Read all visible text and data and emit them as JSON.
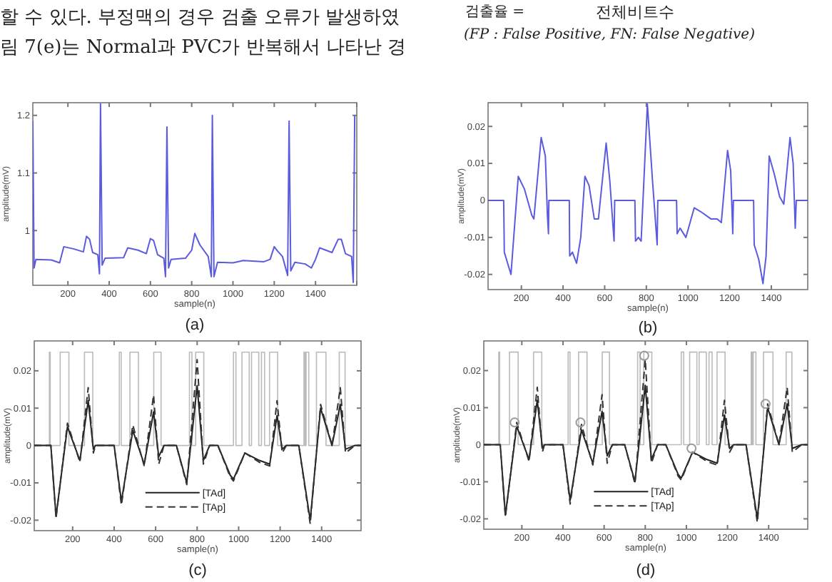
{
  "chart_data": [
    {
      "type": "line",
      "title": "(a)",
      "xlabel": "sample(n)",
      "ylabel": "amplitude(mV)",
      "xlim": [
        30,
        1600
      ],
      "ylim": [
        0.905,
        1.222
      ],
      "xticks": [
        200,
        400,
        600,
        800,
        1000,
        1200,
        1400,
        {
          "value": 1600,
          "label": null
        }
      ],
      "yticks": [
        {
          "value": 1,
          "label": "1"
        },
        1.1,
        1.2
      ],
      "grid": false,
      "annotations": [
        "할 수 있다. 부정맥의 경우 검출 오류가 발생하였",
        "림 7(e)는 Normal과 PVC가 반복해서 나타난 경"
      ],
      "series": [
        {
          "color": "#5b5bdf",
          "x": [
            30,
            36,
            45,
            120,
            160,
            180,
            230,
            275,
            290,
            305,
            320,
            345,
            353,
            358,
            366,
            380,
            470,
            490,
            540,
            580,
            600,
            615,
            635,
            665,
            673,
            680,
            688,
            700,
            770,
            800,
            815,
            840,
            880,
            895,
            900,
            908,
            925,
            1000,
            1050,
            1150,
            1180,
            1200,
            1215,
            1240,
            1265,
            1272,
            1280,
            1300,
            1350,
            1380,
            1400,
            1420,
            1480,
            1510,
            1525,
            1545,
            1575,
            1583,
            1590
          ],
          "values": [
            1.19,
            0.935,
            0.95,
            0.949,
            0.944,
            0.972,
            0.968,
            0.963,
            0.99,
            0.985,
            0.962,
            0.958,
            0.925,
            1.22,
            0.94,
            0.952,
            0.953,
            0.97,
            0.966,
            0.96,
            0.986,
            0.983,
            0.958,
            0.952,
            0.92,
            1.18,
            0.935,
            0.95,
            0.952,
            0.966,
            0.995,
            0.975,
            0.955,
            0.92,
            1.2,
            0.92,
            0.945,
            0.944,
            0.948,
            0.946,
            0.95,
            0.972,
            0.965,
            0.955,
            0.922,
            1.19,
            0.93,
            0.945,
            0.942,
            0.935,
            0.95,
            0.97,
            0.962,
            0.985,
            0.985,
            0.96,
            0.955,
            0.91,
            1.2
          ]
        }
      ]
    },
    {
      "type": "line",
      "title": "(b)",
      "xlabel": "sample(n)",
      "ylabel": "amplitude(mV)",
      "xlim": [
        40,
        1575
      ],
      "ylim": [
        -0.0241,
        0.0264
      ],
      "xticks": [
        200,
        400,
        600,
        800,
        1000,
        1200,
        1400
      ],
      "yticks": [
        -0.02,
        -0.01,
        0,
        0.01,
        0.02
      ],
      "grid": false,
      "annotations": [
        "검출율 =",
        "전체비트수",
        "(FP : False Positive, FN: False Negative)"
      ],
      "series": [
        {
          "color": "#5b5bdf",
          "x": [
            40,
            115,
            118,
            150,
            185,
            215,
            250,
            260,
            295,
            315,
            325,
            330,
            332,
            430,
            432,
            445,
            465,
            485,
            505,
            525,
            550,
            570,
            607,
            625,
            645,
            648,
            745,
            748,
            762,
            775,
            805,
            830,
            852,
            855,
            945,
            948,
            962,
            990,
            1030,
            1060,
            1110,
            1140,
            1160,
            1190,
            1205,
            1215,
            1218,
            1315,
            1318,
            1340,
            1360,
            1375,
            1390,
            1415,
            1440,
            1460,
            1490,
            1505,
            1515,
            1520,
            1575
          ],
          "values": [
            0,
            0,
            -0.014,
            -0.02,
            0.0065,
            0.003,
            -0.004,
            -0.005,
            0.017,
            0.012,
            -0.004,
            -0.009,
            0,
            0,
            -0.015,
            -0.014,
            -0.017,
            -0.01,
            0.0065,
            0.004,
            -0.005,
            -0.005,
            0.0155,
            0.005,
            -0.011,
            0,
            0,
            -0.011,
            -0.01,
            -0.011,
            0.026,
            0.005,
            -0.012,
            0,
            0,
            -0.009,
            -0.0075,
            -0.01,
            -0.002,
            -0.003,
            -0.005,
            -0.005,
            -0.006,
            0.0135,
            0.008,
            -0.009,
            0,
            0,
            -0.012,
            -0.016,
            -0.0225,
            -0.015,
            0.012,
            0.007,
            0.001,
            -0.001,
            0.017,
            0.01,
            -0.0075,
            0,
            0
          ]
        }
      ]
    },
    {
      "type": "line",
      "title": "(c)",
      "xlabel": "sample(n)",
      "ylabel": "amplitude(mV)",
      "xlim": [
        15,
        1590
      ],
      "ylim": [
        -0.0228,
        0.028
      ],
      "xticks": [
        200,
        400,
        600,
        800,
        1000,
        1200,
        1400
      ],
      "yticks": [
        -0.02,
        -0.01,
        0,
        0.01,
        0.02
      ],
      "grid": false,
      "legend": "bottom",
      "series": [
        {
          "type": "step",
          "color": "#bbbbbb",
          "x": [
            15,
            88,
            92,
            140,
            182,
            257,
            297,
            425,
            434,
            476,
            517,
            591,
            626,
            763,
            775,
            793,
            832,
            975,
            987,
            1016,
            1051,
            1062,
            1097,
            1110,
            1125,
            1149,
            1188,
            1315,
            1320,
            1325,
            1338,
            1375,
            1421,
            1485,
            1513,
            1590
          ],
          "values": [
            0,
            0.025,
            0,
            0.025,
            0,
            0.025,
            0,
            0.025,
            0,
            0.025,
            0,
            0.025,
            0,
            0.025,
            0,
            0.025,
            0,
            0.025,
            0,
            0.025,
            0,
            0.025,
            0,
            0.025,
            0,
            0.025,
            0,
            0.025,
            0,
            0.025,
            0,
            0.025,
            0,
            0.025,
            0,
            0
          ]
        },
        {
          "name": "[TAd]",
          "color": "#222222",
          "line_style": "solid",
          "x": [
            15,
            95,
            120,
            175,
            235,
            275,
            300,
            310,
            400,
            435,
            490,
            545,
            590,
            615,
            640,
            700,
            750,
            800,
            830,
            860,
            900,
            960,
            975,
            1030,
            1100,
            1150,
            1185,
            1210,
            1230,
            1290,
            1345,
            1395,
            1450,
            1490,
            1515,
            1560,
            1590
          ],
          "values": [
            0,
            0,
            -0.019,
            0.005,
            -0.004,
            0.012,
            -0.001,
            0,
            0,
            -0.015,
            0.004,
            -0.005,
            0.009,
            -0.003,
            0,
            0,
            -0.01,
            0.016,
            -0.004,
            0,
            0,
            -0.008,
            -0.009,
            -0.002,
            -0.004,
            -0.005,
            0.008,
            -0.001,
            0,
            0,
            -0.02,
            0.01,
            0,
            0.011,
            -0.001,
            0,
            0
          ]
        },
        {
          "name": "[TAp]",
          "color": "#333333",
          "line_style": "dashed",
          "x": [
            15,
            95,
            120,
            175,
            235,
            275,
            300,
            310,
            400,
            435,
            490,
            545,
            590,
            615,
            640,
            700,
            750,
            800,
            830,
            860,
            900,
            960,
            975,
            1030,
            1100,
            1150,
            1185,
            1210,
            1230,
            1290,
            1345,
            1395,
            1450,
            1490,
            1515,
            1560,
            1590
          ],
          "values": [
            0,
            0,
            -0.0195,
            0.006,
            -0.0045,
            0.0155,
            -0.002,
            0,
            0,
            -0.016,
            0.0055,
            -0.0055,
            0.0135,
            -0.005,
            0,
            0,
            -0.0105,
            0.023,
            -0.005,
            0,
            0,
            -0.0085,
            -0.0095,
            -0.002,
            -0.0045,
            -0.0055,
            0.012,
            -0.002,
            0,
            0,
            -0.021,
            0.011,
            0,
            0.0155,
            -0.002,
            0,
            0
          ]
        }
      ]
    },
    {
      "type": "line",
      "title": "(d)",
      "xlabel": "sample(n)",
      "ylabel": "amplitude(mV)",
      "xlim": [
        15,
        1590
      ],
      "ylim": [
        -0.0228,
        0.028
      ],
      "xticks": [
        200,
        400,
        600,
        800,
        1000,
        1200,
        1400
      ],
      "yticks": [
        -0.02,
        -0.01,
        0,
        0.01,
        0.02
      ],
      "grid": false,
      "legend": "bottom",
      "series": [
        {
          "type": "step",
          "color": "#bbbbbb",
          "x": [
            15,
            88,
            92,
            140,
            182,
            257,
            297,
            425,
            434,
            476,
            517,
            591,
            626,
            763,
            775,
            793,
            832,
            975,
            987,
            1016,
            1051,
            1062,
            1097,
            1110,
            1125,
            1149,
            1188,
            1315,
            1320,
            1325,
            1338,
            1375,
            1421,
            1485,
            1513,
            1590
          ],
          "values": [
            0,
            0.025,
            0,
            0.025,
            0,
            0.025,
            0,
            0.025,
            0,
            0.025,
            0,
            0.025,
            0,
            0.025,
            0,
            0.025,
            0,
            0.025,
            0,
            0.025,
            0,
            0.025,
            0,
            0.025,
            0,
            0.025,
            0,
            0.025,
            0,
            0.025,
            0,
            0.025,
            0,
            0.025,
            0,
            0
          ]
        },
        {
          "name": "[TAd]",
          "color": "#222222",
          "line_style": "solid",
          "x": [
            15,
            95,
            120,
            175,
            235,
            275,
            300,
            310,
            400,
            435,
            490,
            545,
            590,
            615,
            640,
            700,
            750,
            800,
            830,
            860,
            900,
            960,
            975,
            1030,
            1100,
            1150,
            1185,
            1210,
            1230,
            1290,
            1345,
            1395,
            1450,
            1490,
            1515,
            1560,
            1590
          ],
          "values": [
            0,
            0,
            -0.019,
            0.005,
            -0.004,
            0.012,
            -0.001,
            0,
            0,
            -0.015,
            0.004,
            -0.005,
            0.009,
            -0.003,
            0,
            0,
            -0.01,
            0.016,
            -0.004,
            0,
            0,
            -0.008,
            -0.009,
            -0.002,
            -0.004,
            -0.005,
            0.008,
            -0.001,
            0,
            0,
            -0.02,
            0.01,
            0,
            0.011,
            -0.001,
            0,
            0
          ]
        },
        {
          "name": "[TAp]",
          "color": "#333333",
          "line_style": "dashed",
          "x": [
            15,
            95,
            120,
            175,
            235,
            275,
            300,
            310,
            400,
            435,
            490,
            545,
            590,
            615,
            640,
            700,
            750,
            800,
            830,
            860,
            900,
            960,
            975,
            1030,
            1100,
            1150,
            1185,
            1210,
            1230,
            1290,
            1345,
            1395,
            1450,
            1490,
            1515,
            1560,
            1590
          ],
          "values": [
            0,
            0,
            -0.0195,
            0.006,
            -0.0045,
            0.0155,
            -0.002,
            0,
            0,
            -0.016,
            0.0055,
            -0.0055,
            0.0135,
            -0.005,
            0,
            0,
            -0.0105,
            0.023,
            -0.005,
            0,
            0,
            -0.0085,
            -0.0095,
            -0.002,
            -0.0045,
            -0.0055,
            0.012,
            -0.002,
            0,
            0,
            -0.021,
            0.011,
            0,
            0.0155,
            -0.002,
            0,
            0
          ]
        },
        {
          "type": "scatter",
          "color": "#999999",
          "marker": "circle",
          "x": [
            165,
            485,
            795,
            1025,
            1385
          ],
          "values": [
            0.006,
            0.006,
            0.024,
            -0.001,
            0.011
          ]
        }
      ]
    }
  ]
}
